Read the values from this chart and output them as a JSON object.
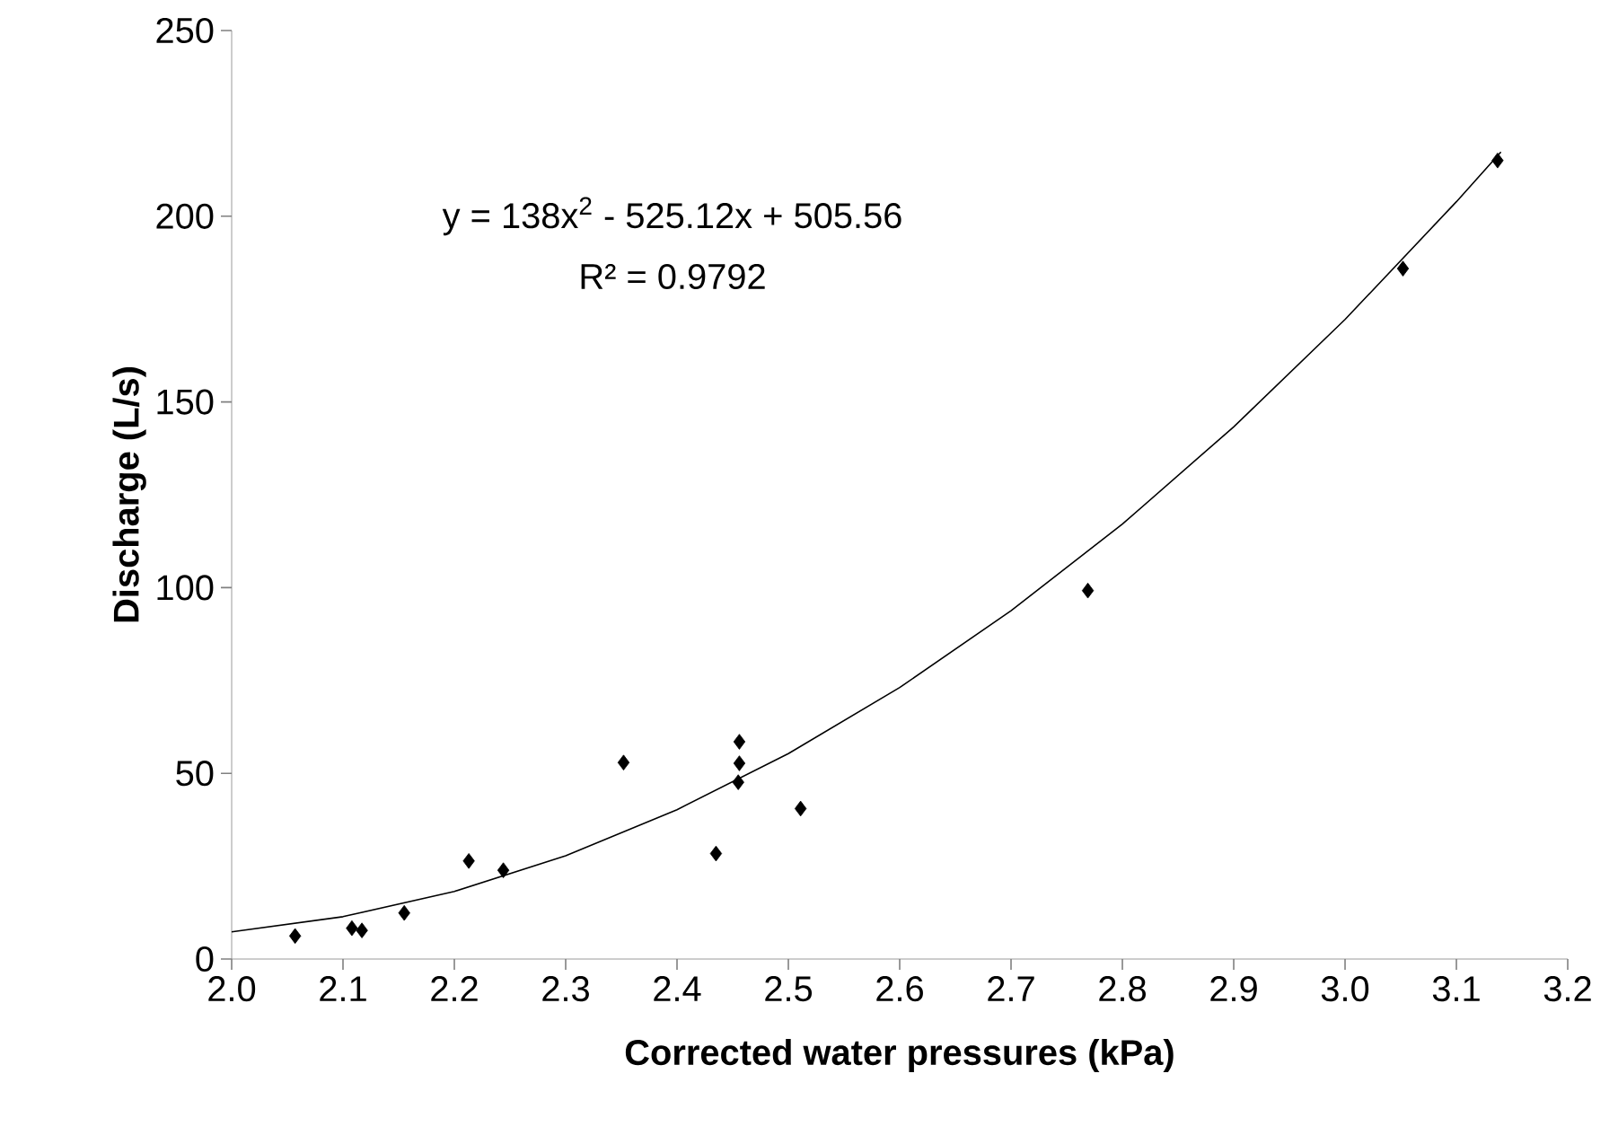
{
  "chart_data": {
    "type": "scatter",
    "xlabel": "Corrected water pressures  (kPa)",
    "ylabel": "Discharge (L/s)",
    "annotations": [
      "y = 138x$^{2}$ - 525.12x + 505.56",
      "R² = 0.9792"
    ],
    "xlim": [
      2.0,
      3.2
    ],
    "ylim": [
      0,
      250
    ],
    "xticks": [
      {
        "value": 2.0,
        "label": "2.0"
      },
      {
        "value": 2.1,
        "label": "2.1"
      },
      {
        "value": 2.2,
        "label": "2.2"
      },
      {
        "value": 2.3,
        "label": "2.3"
      },
      {
        "value": 2.4,
        "label": "2.4"
      },
      {
        "value": 2.5,
        "label": "2.5"
      },
      {
        "value": 2.6,
        "label": "2.6"
      },
      {
        "value": 2.7,
        "label": "2.7"
      },
      {
        "value": 2.8,
        "label": "2.8"
      },
      {
        "value": 2.9,
        "label": "2.9"
      },
      {
        "value": 3.0,
        "label": "3.0"
      },
      {
        "value": 3.1,
        "label": "3.1"
      },
      {
        "value": 3.2,
        "label": "3.2"
      }
    ],
    "yticks": [
      0,
      50,
      100,
      150,
      200,
      250
    ],
    "series": [
      {
        "color": "#000000",
        "marker": "diamond",
        "x": [
          2.057,
          2.108,
          2.117,
          2.155,
          2.213,
          2.244,
          2.352,
          2.435,
          2.455,
          2.456,
          2.456,
          2.511,
          2.769,
          3.052,
          3.137
        ],
        "values": [
          6.2,
          8.3,
          7.7,
          12.4,
          26.4,
          23.9,
          52.9,
          28.4,
          47.6,
          52.7,
          58.5,
          40.5,
          99.2,
          185.9,
          215.0
        ]
      },
      {
        "type": "line",
        "color": "#000000",
        "marker": "none",
        "x": [
          2.0,
          2.1,
          2.2,
          2.3,
          2.4,
          2.5,
          2.6,
          2.7,
          2.8,
          2.9,
          3.0,
          3.1,
          3.14
        ],
        "values": [
          7.3,
          11.4,
          18.2,
          27.8,
          40.2,
          55.3,
          73.1,
          93.8,
          117.1,
          143.3,
          172.2,
          203.9,
          217.3
        ]
      }
    ]
  }
}
